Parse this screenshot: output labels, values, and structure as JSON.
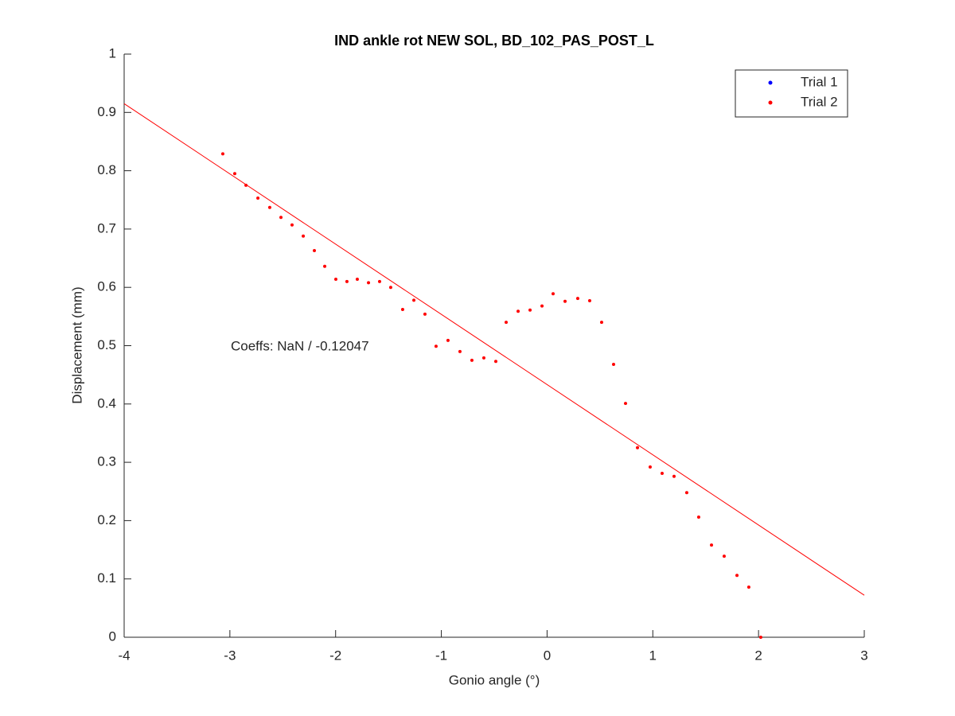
{
  "chart_data": {
    "type": "scatter",
    "title": "IND ankle rot NEW SOL, BD_102_PAS_POST_L",
    "x_label": "Gonio angle (°)",
    "y_label": "Displacement (mm)",
    "annotation": "Coeffs: NaN / -0.12047",
    "xlim": [
      -4,
      3
    ],
    "xticks": [
      -4,
      -3,
      -2,
      -1,
      0,
      1,
      2,
      3
    ],
    "ylim": [
      0,
      1
    ],
    "yticks": [
      0,
      0.1,
      0.2,
      0.3,
      0.4,
      0.5,
      0.6,
      0.7,
      0.8,
      0.9,
      1
    ],
    "legend_position": "upper right",
    "series": [
      {
        "name": "Trial 1",
        "color": "#0000ff",
        "x": [],
        "values": []
      },
      {
        "name": "Trial 2",
        "color": "#ff0000",
        "x": [
          -3.067,
          -2.954,
          -2.848,
          -2.735,
          -2.623,
          -2.517,
          -2.412,
          -2.306,
          -2.201,
          -2.103,
          -1.998,
          -1.893,
          -1.795,
          -1.689,
          -1.584,
          -1.479,
          -1.366,
          -1.26,
          -1.155,
          -1.05,
          -0.937,
          -0.824,
          -0.711,
          -0.598,
          -0.485,
          -0.387,
          -0.274,
          -0.161,
          -0.048,
          0.057,
          0.17,
          0.29,
          0.403,
          0.516,
          0.629,
          0.742,
          0.855,
          0.975,
          1.088,
          1.201,
          1.321,
          1.434,
          1.555,
          1.675,
          1.796,
          1.908,
          2.021
        ],
        "values": [
          0.829,
          0.795,
          0.775,
          0.753,
          0.737,
          0.72,
          0.707,
          0.688,
          0.663,
          0.636,
          0.614,
          0.61,
          0.614,
          0.608,
          0.61,
          0.6,
          0.562,
          0.578,
          0.554,
          0.499,
          0.509,
          0.49,
          0.475,
          0.479,
          0.473,
          0.54,
          0.559,
          0.561,
          0.568,
          0.589,
          0.576,
          0.581,
          0.577,
          0.54,
          0.468,
          0.401,
          0.325,
          0.292,
          0.281,
          0.276,
          0.248,
          0.206,
          0.158,
          0.139,
          0.106,
          0.086,
          0
        ]
      }
    ],
    "fit_line": {
      "color": "#ff0000",
      "x": [
        -4,
        3
      ],
      "values": [
        0.915,
        0.072
      ]
    }
  }
}
